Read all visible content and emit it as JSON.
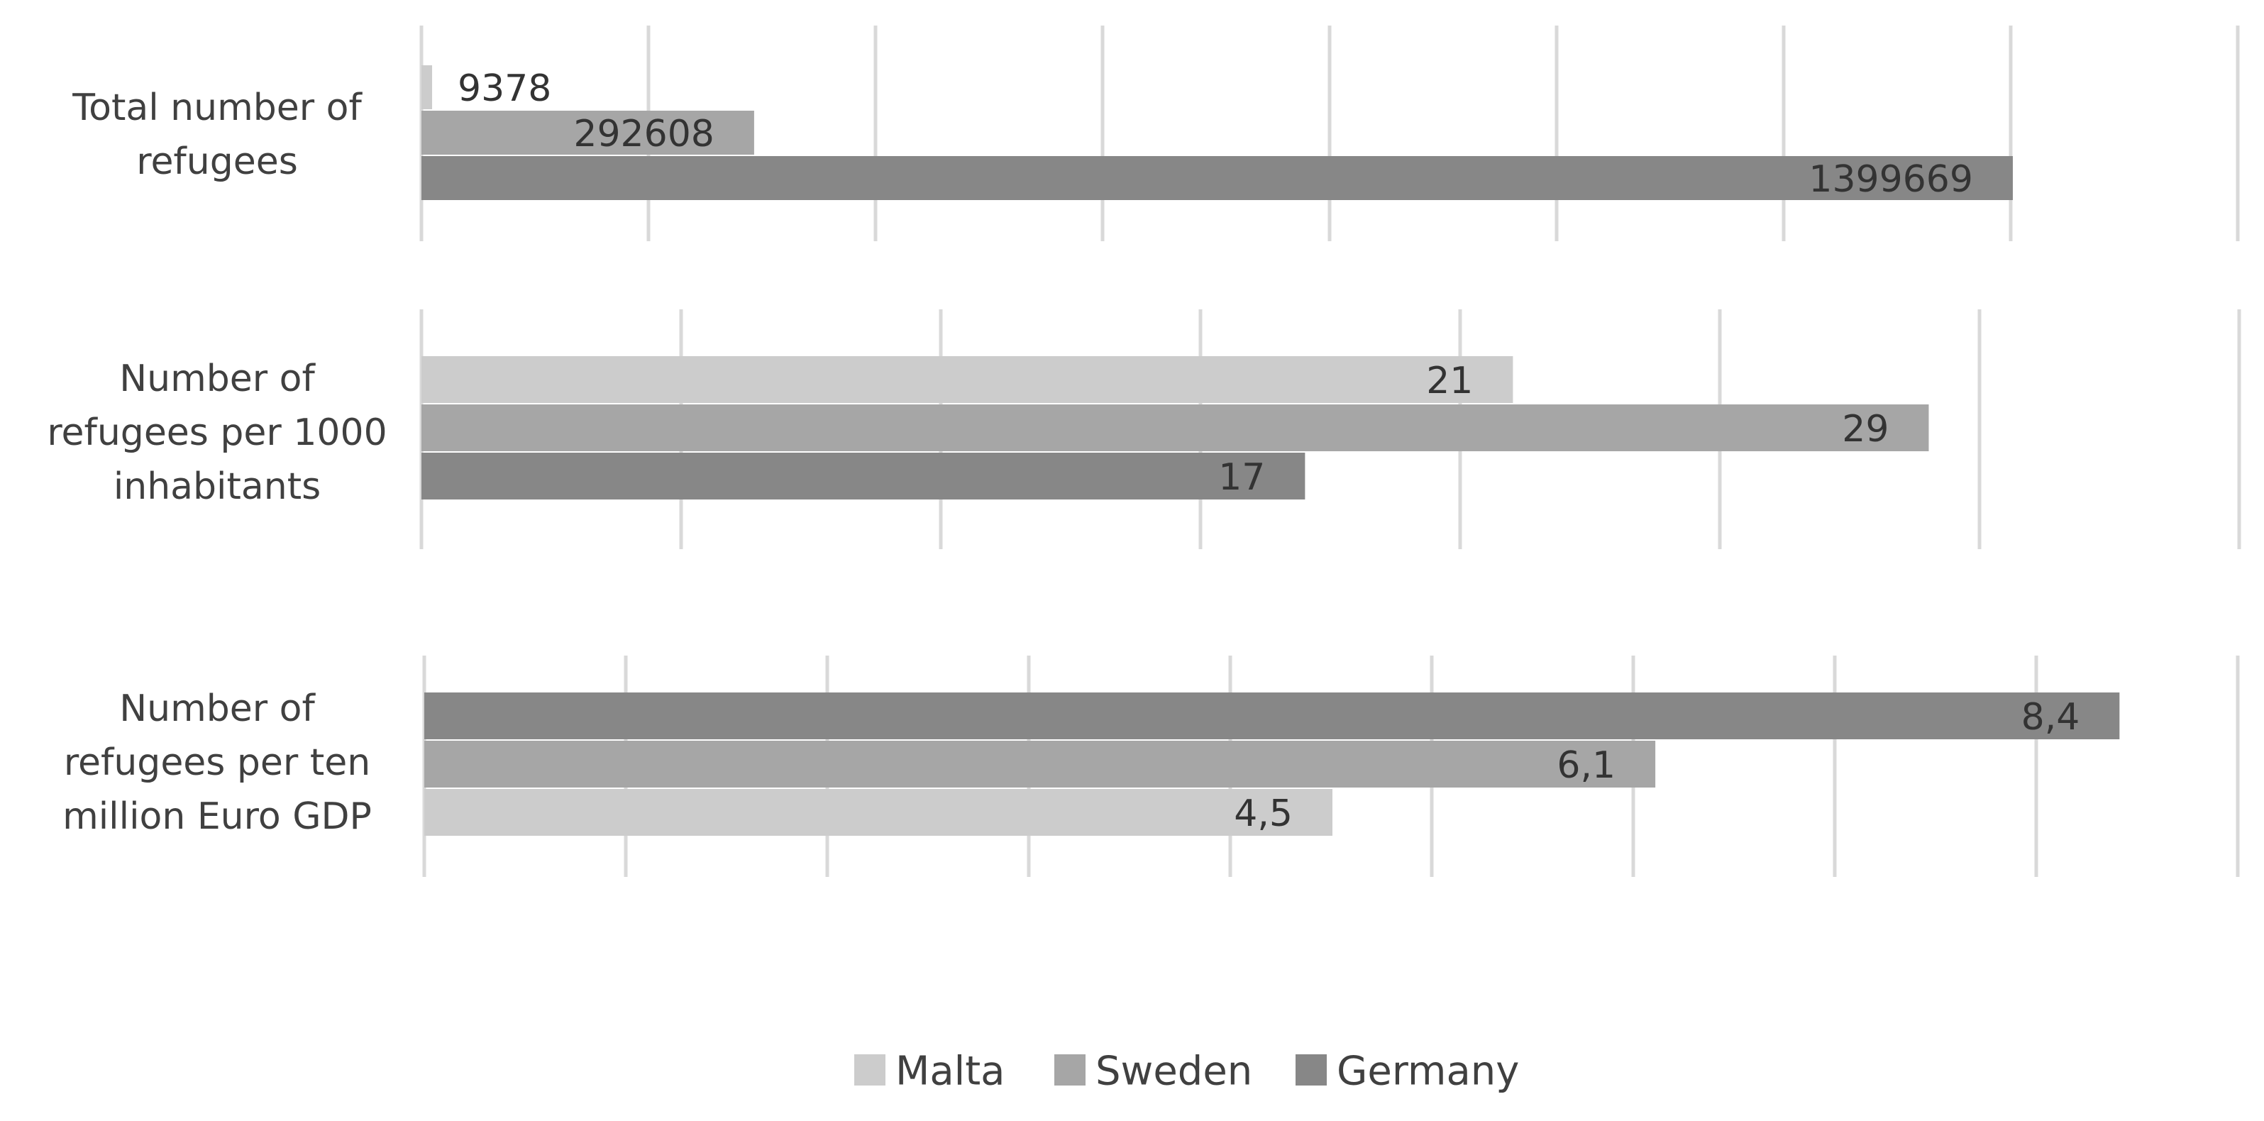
{
  "chart_data": [
    {
      "type": "bar",
      "orientation": "horizontal",
      "category": "Total number of refugees",
      "category_lines": [
        "Total number of",
        "refugees"
      ],
      "series_order": [
        "Malta",
        "Sweden",
        "Germany"
      ],
      "series": [
        {
          "name": "Malta",
          "value": 9378,
          "label": "9378"
        },
        {
          "name": "Sweden",
          "value": 292608,
          "label": "292608"
        },
        {
          "name": "Germany",
          "value": 1399669,
          "label": "1399669"
        }
      ],
      "xlim": [
        0,
        1600000
      ],
      "grid": true
    },
    {
      "type": "bar",
      "orientation": "horizontal",
      "category": "Number of refugees per 1000 inhabitants",
      "category_lines": [
        "Number of",
        "refugees per 1000",
        "inhabitants"
      ],
      "series_order": [
        "Malta",
        "Sweden",
        "Germany"
      ],
      "series": [
        {
          "name": "Malta",
          "value": 21,
          "label": "21"
        },
        {
          "name": "Sweden",
          "value": 29,
          "label": "29"
        },
        {
          "name": "Germany",
          "value": 17,
          "label": "17"
        }
      ],
      "xlim": [
        0,
        35
      ],
      "grid": true
    },
    {
      "type": "bar",
      "orientation": "horizontal",
      "category": "Number of refugees per ten million Euro GDP",
      "category_lines": [
        "Number of",
        "refugees per ten",
        "million Euro GDP"
      ],
      "series_order": [
        "Germany",
        "Sweden",
        "Malta"
      ],
      "series": [
        {
          "name": "Germany",
          "value": 8.4,
          "label": "8,4"
        },
        {
          "name": "Sweden",
          "value": 6.1,
          "label": "6,1"
        },
        {
          "name": "Malta",
          "value": 4.5,
          "label": "4,5"
        }
      ],
      "xlim": [
        0,
        9
      ],
      "grid": true
    }
  ],
  "legend": {
    "position": "bottom",
    "items": [
      {
        "name": "Malta",
        "color": "#cccccc"
      },
      {
        "name": "Sweden",
        "color": "#a6a6a6"
      },
      {
        "name": "Germany",
        "color": "#878787"
      }
    ]
  },
  "colors": {
    "Malta": "#cccccc",
    "Sweden": "#a6a6a6",
    "Germany": "#878787",
    "grid": "#d9d9d9",
    "text": "#404040"
  }
}
